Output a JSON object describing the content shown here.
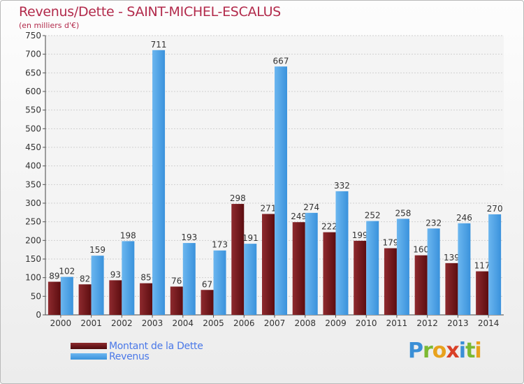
{
  "chart_data": {
    "type": "bar",
    "title": "Revenus/Dette - SAINT-MICHEL-ESCALUS",
    "subtitle": "(en milliers d'€)",
    "categories": [
      "2000",
      "2001",
      "2002",
      "2003",
      "2004",
      "2005",
      "2006",
      "2007",
      "2008",
      "2009",
      "2010",
      "2011",
      "2012",
      "2013",
      "2014"
    ],
    "series": [
      {
        "name": "Montant de la Dette",
        "color": "#7a1a1e",
        "values": [
          89,
          82,
          93,
          85,
          76,
          67,
          298,
          271,
          249,
          222,
          199,
          179,
          160,
          139,
          117
        ]
      },
      {
        "name": "Revenus",
        "color": "#4aa3e8",
        "values": [
          102,
          159,
          198,
          711,
          193,
          173,
          191,
          667,
          274,
          332,
          252,
          258,
          232,
          246,
          270
        ]
      }
    ],
    "ylim": [
      0,
      750
    ],
    "yticks": [
      0,
      50,
      100,
      150,
      200,
      250,
      300,
      350,
      400,
      450,
      500,
      550,
      600,
      650,
      700,
      750
    ],
    "grid": true,
    "legend_position": "bottom-left"
  },
  "logo": {
    "letters": [
      {
        "ch": "P",
        "color": "#3a8fd6"
      },
      {
        "ch": "r",
        "color": "#7cb932"
      },
      {
        "ch": "o",
        "color": "#e8a21c"
      },
      {
        "ch": "x",
        "color": "#d94027"
      },
      {
        "ch": "i",
        "color": "#3a8fd6"
      },
      {
        "ch": "t",
        "color": "#7cb932"
      },
      {
        "ch": "i",
        "color": "#e8a21c"
      }
    ]
  }
}
